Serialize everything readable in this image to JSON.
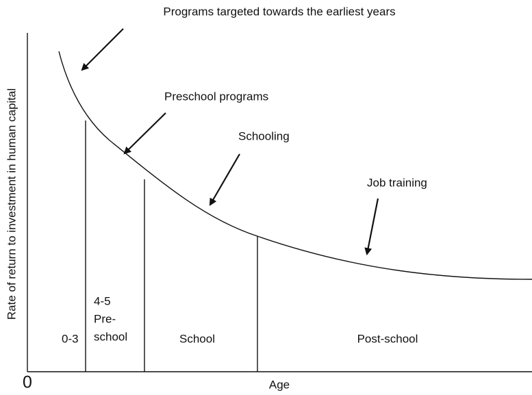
{
  "annotations": [
    {
      "label": "Programs targeted towards the earliest years"
    },
    {
      "label": "Preschool programs"
    },
    {
      "label": "Schooling"
    },
    {
      "label": "Job training"
    }
  ],
  "regions": [
    {
      "lines": [
        "0-3"
      ]
    },
    {
      "lines": [
        "4-5",
        "Pre-",
        "school"
      ]
    },
    {
      "lines": [
        "School"
      ]
    },
    {
      "lines": [
        "Post-school"
      ]
    }
  ],
  "axis": {
    "origin": "0",
    "x_label": "Age",
    "y_label": "Rate of return to investment in human capital"
  }
}
